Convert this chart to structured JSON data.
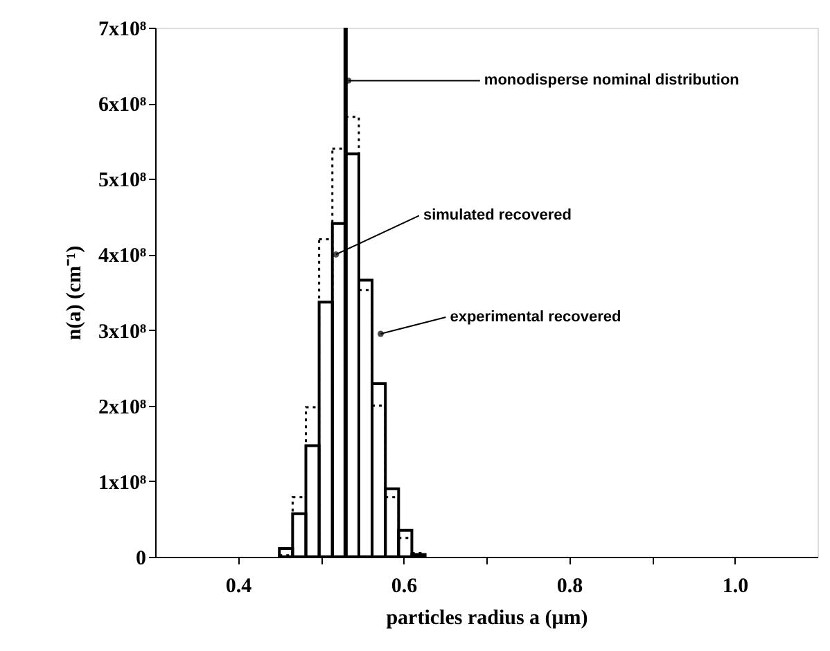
{
  "chart_data": {
    "type": "histogram",
    "xlabel": "particles radius a (μm)",
    "ylabel": "n(a) (cm⁻¹)",
    "bins": [
      0.45,
      0.466,
      0.482,
      0.498,
      0.514,
      0.53,
      0.546,
      0.562,
      0.578,
      0.594,
      0.61,
      0.626
    ],
    "series": [
      {
        "color": "#000000",
        "line_style": "solid",
        "values": [
          11000000.0,
          57000000.0,
          147000000.0,
          337000000.0,
          441000000.0,
          533000000.0,
          366000000.0,
          229000000.0,
          90000000.0,
          35000000.0,
          3000000.0
        ]
      },
      {
        "color": "#000000",
        "line_style": "dotted",
        "values": [
          2000000.0,
          79000000.0,
          198000000.0,
          420000000.0,
          540000000.0,
          582000000.0,
          353000000.0,
          200000000.0,
          79000000.0,
          25000000.0,
          5000000.0
        ]
      }
    ],
    "ref_lines": [
      {
        "axis": "x",
        "value": 0.53,
        "color": "#000000",
        "line_style": "solid"
      }
    ],
    "annotations": [
      {
        "text": "monodisperse nominal distribution",
        "x": 0.53,
        "y": 630000000.0
      },
      {
        "text": "simulated recovered",
        "x": 0.515,
        "y": 400000000.0
      },
      {
        "text": "experimental recovered",
        "x": 0.569,
        "y": 295000000.0
      }
    ],
    "xlim": [
      0.3,
      1.1
    ],
    "xticks": [
      0.4,
      {
        "value": 0.5,
        "label": null
      },
      0.6,
      {
        "value": 0.7,
        "label": null
      },
      0.8,
      {
        "value": 0.9,
        "label": null
      },
      {
        "value": 1.0,
        "label": "1.0"
      }
    ],
    "ylim": [
      0,
      700000000.0
    ],
    "yticks": [
      0,
      {
        "value": 100000000.0,
        "label": "1x10⁸"
      },
      {
        "value": 200000000.0,
        "label": "2x10⁸"
      },
      {
        "value": 300000000.0,
        "label": "3x10⁸"
      },
      {
        "value": 400000000.0,
        "label": "4x10⁸"
      },
      {
        "value": 500000000.0,
        "label": "5x10⁸"
      },
      {
        "value": 600000000.0,
        "label": "6x10⁸"
      },
      {
        "value": 700000000.0,
        "label": "7x10⁸"
      }
    ],
    "grid": false
  }
}
